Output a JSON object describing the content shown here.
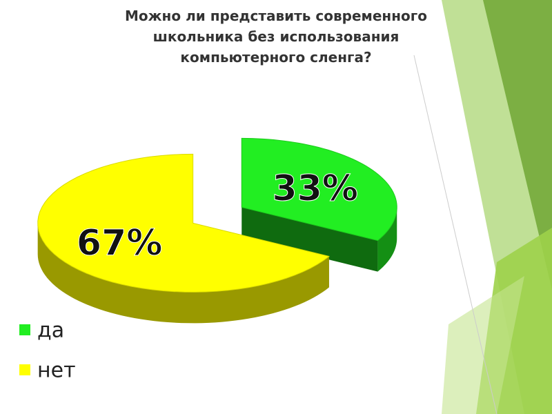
{
  "chart_data": {
    "type": "pie",
    "title": "Можно ли представить современного школьника без использования компьютерного сленга?",
    "categories": [
      "да",
      "нет"
    ],
    "values": [
      33,
      67
    ],
    "value_labels": [
      "33%",
      "67%"
    ],
    "colors": [
      "#22ee22",
      "#ffff00"
    ]
  }
}
